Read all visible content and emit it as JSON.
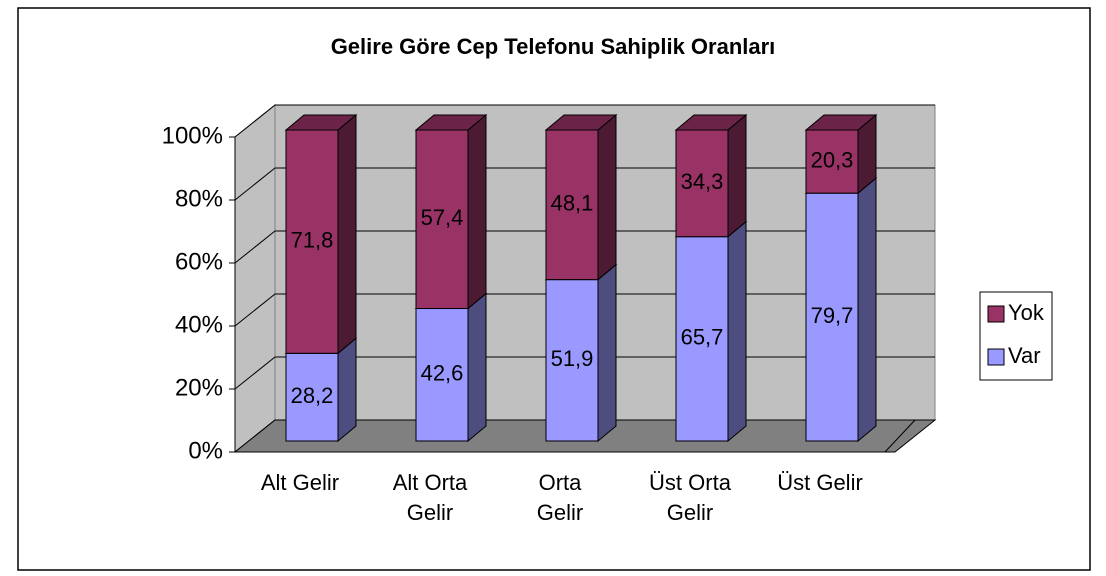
{
  "chart_data": {
    "type": "bar3d_stacked",
    "title": "Gelire Göre Cep Telefonu Sahiplik Oranları",
    "categories": [
      "Alt Gelir",
      "Alt Orta Gelir",
      "Orta Gelir",
      "Üst Orta Gelir",
      "Üst Gelir"
    ],
    "series": [
      {
        "name": "Var",
        "color": "#9999ff",
        "values": [
          28.2,
          42.6,
          51.9,
          65.7,
          79.7
        ],
        "value_labels": [
          "28,2",
          "42,6",
          "51,9",
          "65,7",
          "79,7"
        ]
      },
      {
        "name": "Yok",
        "color": "#993366",
        "values": [
          71.8,
          57.4,
          48.1,
          34.3,
          20.3
        ],
        "value_labels": [
          "71,8",
          "57,4",
          "48,1",
          "34,3",
          "20,3"
        ]
      }
    ],
    "ylim": [
      0,
      100
    ],
    "yticks": [
      {
        "value": 0,
        "label": "0%"
      },
      {
        "value": 20,
        "label": "20%"
      },
      {
        "value": 40,
        "label": "40%"
      },
      {
        "value": 60,
        "label": "60%"
      },
      {
        "value": 80,
        "label": "80%"
      },
      {
        "value": 100,
        "label": "100%"
      }
    ],
    "grid": true,
    "legend": "right"
  }
}
